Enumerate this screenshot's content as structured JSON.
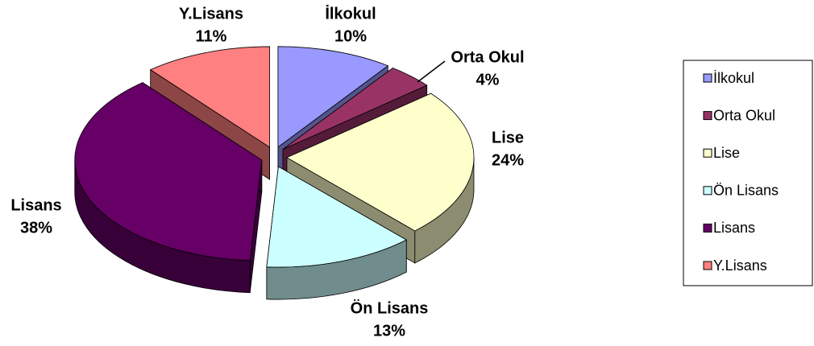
{
  "chart_data": {
    "type": "pie",
    "categories": [
      "İlkokul",
      "Orta Okul",
      "Lise",
      "Ön Lisans",
      "Lisans",
      "Y.Lisans"
    ],
    "values": [
      10,
      4,
      24,
      13,
      38,
      11
    ],
    "value_labels": [
      "10%",
      "4%",
      "24%",
      "13%",
      "38%",
      "11%"
    ],
    "colors": [
      "#9999ff",
      "#993366",
      "#ffffcc",
      "#ccffff",
      "#660066",
      "#ff8080"
    ],
    "legend": "right"
  }
}
